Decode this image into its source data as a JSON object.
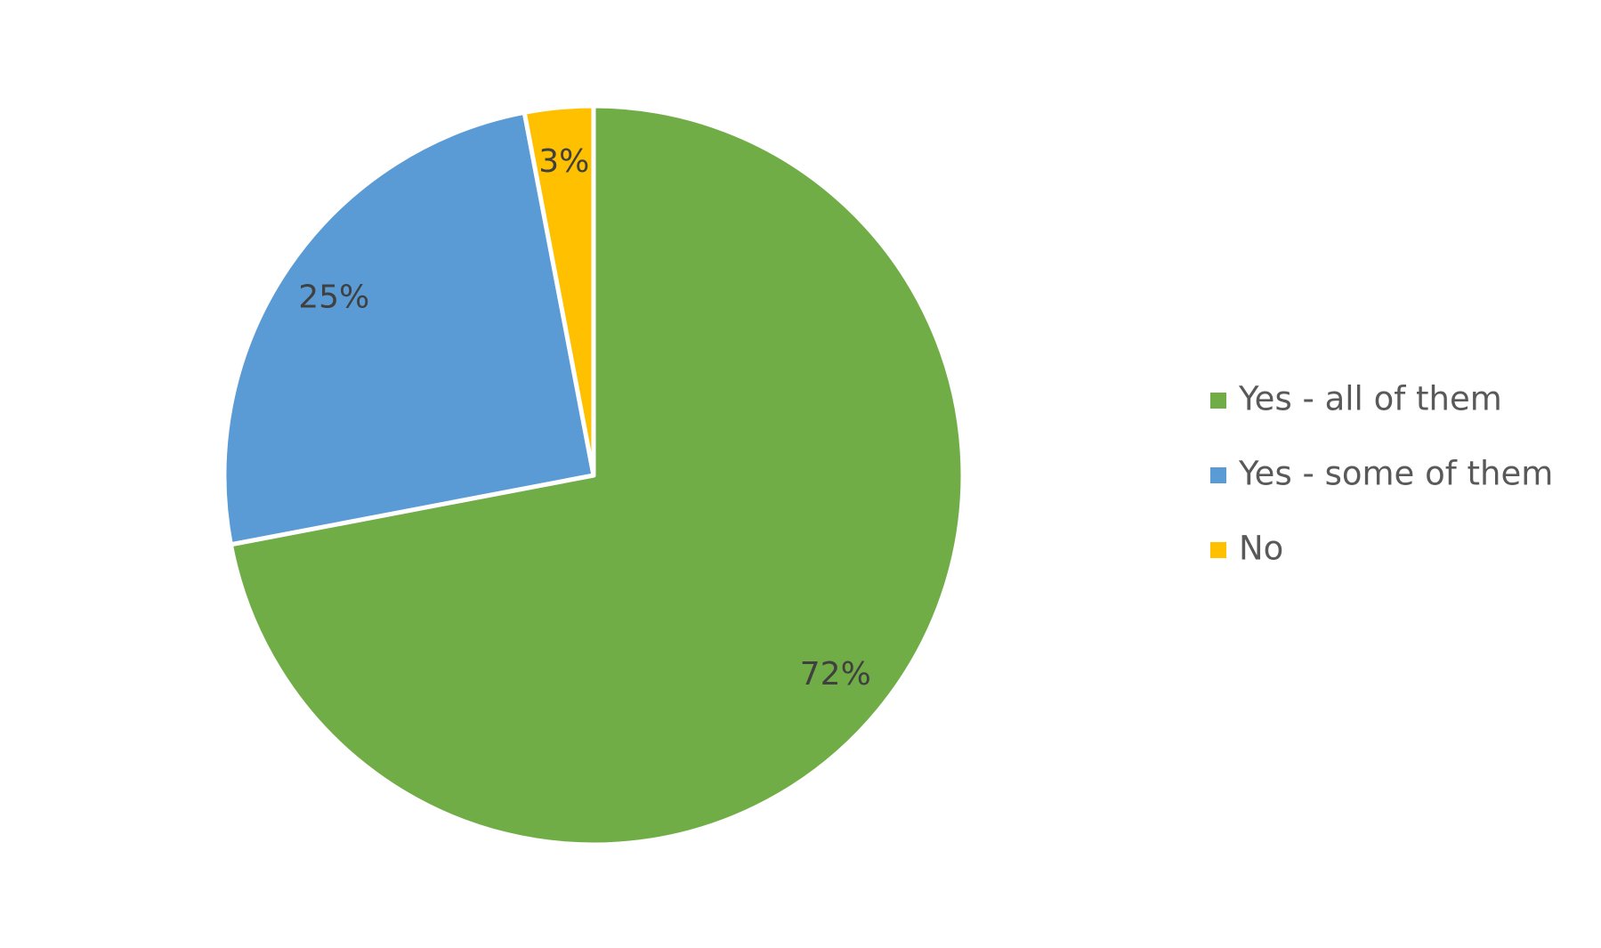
{
  "chart_data": {
    "type": "pie",
    "categories": [
      "Yes - all of them",
      "Yes - some of them",
      "No"
    ],
    "values": [
      72,
      25,
      3
    ],
    "value_labels": [
      "72%",
      "25%",
      "3%"
    ],
    "colors": [
      "#70ad47",
      "#5b9bd5",
      "#ffc000"
    ],
    "legend": "right"
  }
}
